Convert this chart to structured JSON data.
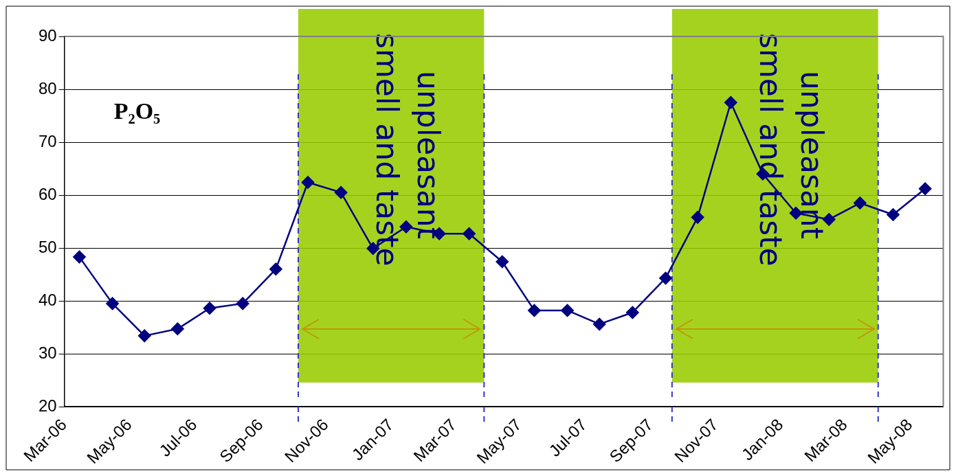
{
  "chart_data": {
    "type": "line",
    "x": [
      "2006-03-15",
      "2006-04-15",
      "2006-05-15",
      "2006-06-15",
      "2006-07-15",
      "2006-08-15",
      "2006-09-15",
      "2006-10-15",
      "2006-11-15",
      "2006-12-15",
      "2007-01-15",
      "2007-02-15",
      "2007-03-15",
      "2007-04-15",
      "2007-05-15",
      "2007-06-15",
      "2007-07-15",
      "2007-08-15",
      "2007-09-15",
      "2007-10-15",
      "2007-11-15",
      "2007-12-15",
      "2008-01-15",
      "2008-02-15",
      "2008-03-15",
      "2008-04-15",
      "2008-05-15"
    ],
    "series": [
      {
        "color": "#000080",
        "values": [
          48.3,
          39.5,
          33.4,
          34.7,
          38.6,
          39.5,
          46.0,
          62.4,
          60.5,
          49.9,
          54.0,
          52.7,
          52.7,
          47.4,
          38.2,
          38.2,
          35.6,
          37.8,
          44.3,
          55.8,
          77.5,
          64.0,
          56.6,
          55.4,
          58.5,
          56.3,
          61.2
        ]
      }
    ],
    "xlim": [
      "2006-03-01",
      "2008-06-01"
    ],
    "xticks": [
      {
        "value": "2006-03-01",
        "label": "Mar-06"
      },
      {
        "value": "2006-05-01",
        "label": "May-06"
      },
      {
        "value": "2006-07-01",
        "label": "Jul-06"
      },
      {
        "value": "2006-09-01",
        "label": "Sep-06"
      },
      {
        "value": "2006-11-01",
        "label": "Nov-06"
      },
      {
        "value": "2007-01-01",
        "label": "Jan-07"
      },
      {
        "value": "2007-03-01",
        "label": "Mar-07"
      },
      {
        "value": "2007-05-01",
        "label": "May-07"
      },
      {
        "value": "2007-07-01",
        "label": "Jul-07"
      },
      {
        "value": "2007-09-01",
        "label": "Sep-07"
      },
      {
        "value": "2007-11-01",
        "label": "Nov-07"
      },
      {
        "value": "2008-01-01",
        "label": "Jan-08"
      },
      {
        "value": "2008-03-01",
        "label": "Mar-08"
      },
      {
        "value": "2008-05-01",
        "label": "May-08"
      }
    ],
    "ylim": [
      20,
      90
    ],
    "yticks": [
      20,
      30,
      40,
      50,
      60,
      70,
      80,
      90
    ],
    "bands": [
      {
        "axis": "x",
        "from": "2006-10-06",
        "to": "2007-03-29",
        "label": "unpleasant smell and taste",
        "color": "#99cc00"
      },
      {
        "axis": "x",
        "from": "2007-09-21",
        "to": "2008-04-01",
        "label": "unpleasant smell and taste",
        "color": "#99cc00"
      }
    ],
    "ref_lines": [
      {
        "axis": "x",
        "value": "2006-10-06",
        "color": "#3333cc",
        "line_style": "dashed"
      },
      {
        "axis": "x",
        "value": "2007-03-29",
        "color": "#3333cc",
        "line_style": "dashed"
      },
      {
        "axis": "x",
        "value": "2007-09-21",
        "color": "#3333cc",
        "line_style": "dashed"
      },
      {
        "axis": "x",
        "value": "2008-04-01",
        "color": "#3333cc",
        "line_style": "dashed"
      }
    ],
    "annotations": [
      "P₂O₅"
    ],
    "grid": "y",
    "legend": false,
    "marker": "diamond",
    "line_style": "solid"
  }
}
